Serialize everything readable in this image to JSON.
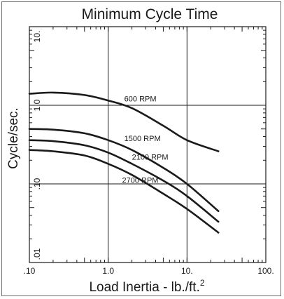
{
  "chart_data": {
    "type": "line",
    "title": "Minimum Cycle Time",
    "xlabel": "Load Inertia - lb./ft.",
    "xlabel_sup": "2",
    "ylabel": "Cycle/sec.",
    "x_scale": "log",
    "y_scale": "log",
    "xlim": [
      0.1,
      100
    ],
    "ylim": [
      0.01,
      10
    ],
    "x_ticks": [
      {
        "value": 0.1,
        "label": ".10"
      },
      {
        "value": 1,
        "label": "1.0"
      },
      {
        "value": 10,
        "label": "10."
      },
      {
        "value": 100,
        "label": "100."
      }
    ],
    "y_ticks": [
      {
        "value": 10,
        "label": "10."
      },
      {
        "value": 1,
        "label": "1.0"
      },
      {
        "value": 0.1,
        "label": ".10"
      },
      {
        "value": 0.01,
        "label": ".01"
      }
    ],
    "grid": "decades",
    "series": [
      {
        "name": "600 RPM",
        "x": [
          0.1,
          0.2,
          0.5,
          1,
          2,
          5,
          10,
          25
        ],
        "y": [
          1.4,
          1.45,
          1.35,
          1.15,
          0.92,
          0.55,
          0.36,
          0.26
        ]
      },
      {
        "name": "1500 RPM",
        "x": [
          0.1,
          0.2,
          0.5,
          1,
          2,
          5,
          10,
          25
        ],
        "y": [
          0.5,
          0.49,
          0.44,
          0.36,
          0.27,
          0.16,
          0.1,
          0.045
        ]
      },
      {
        "name": "2100 RPM",
        "x": [
          0.1,
          0.2,
          0.5,
          1,
          2,
          5,
          10,
          25
        ],
        "y": [
          0.36,
          0.35,
          0.31,
          0.25,
          0.18,
          0.11,
          0.07,
          0.033
        ]
      },
      {
        "name": "2700 RPM",
        "x": [
          0.1,
          0.2,
          0.5,
          1,
          2,
          5,
          10,
          25
        ],
        "y": [
          0.27,
          0.26,
          0.23,
          0.18,
          0.13,
          0.075,
          0.048,
          0.024
        ]
      }
    ]
  }
}
